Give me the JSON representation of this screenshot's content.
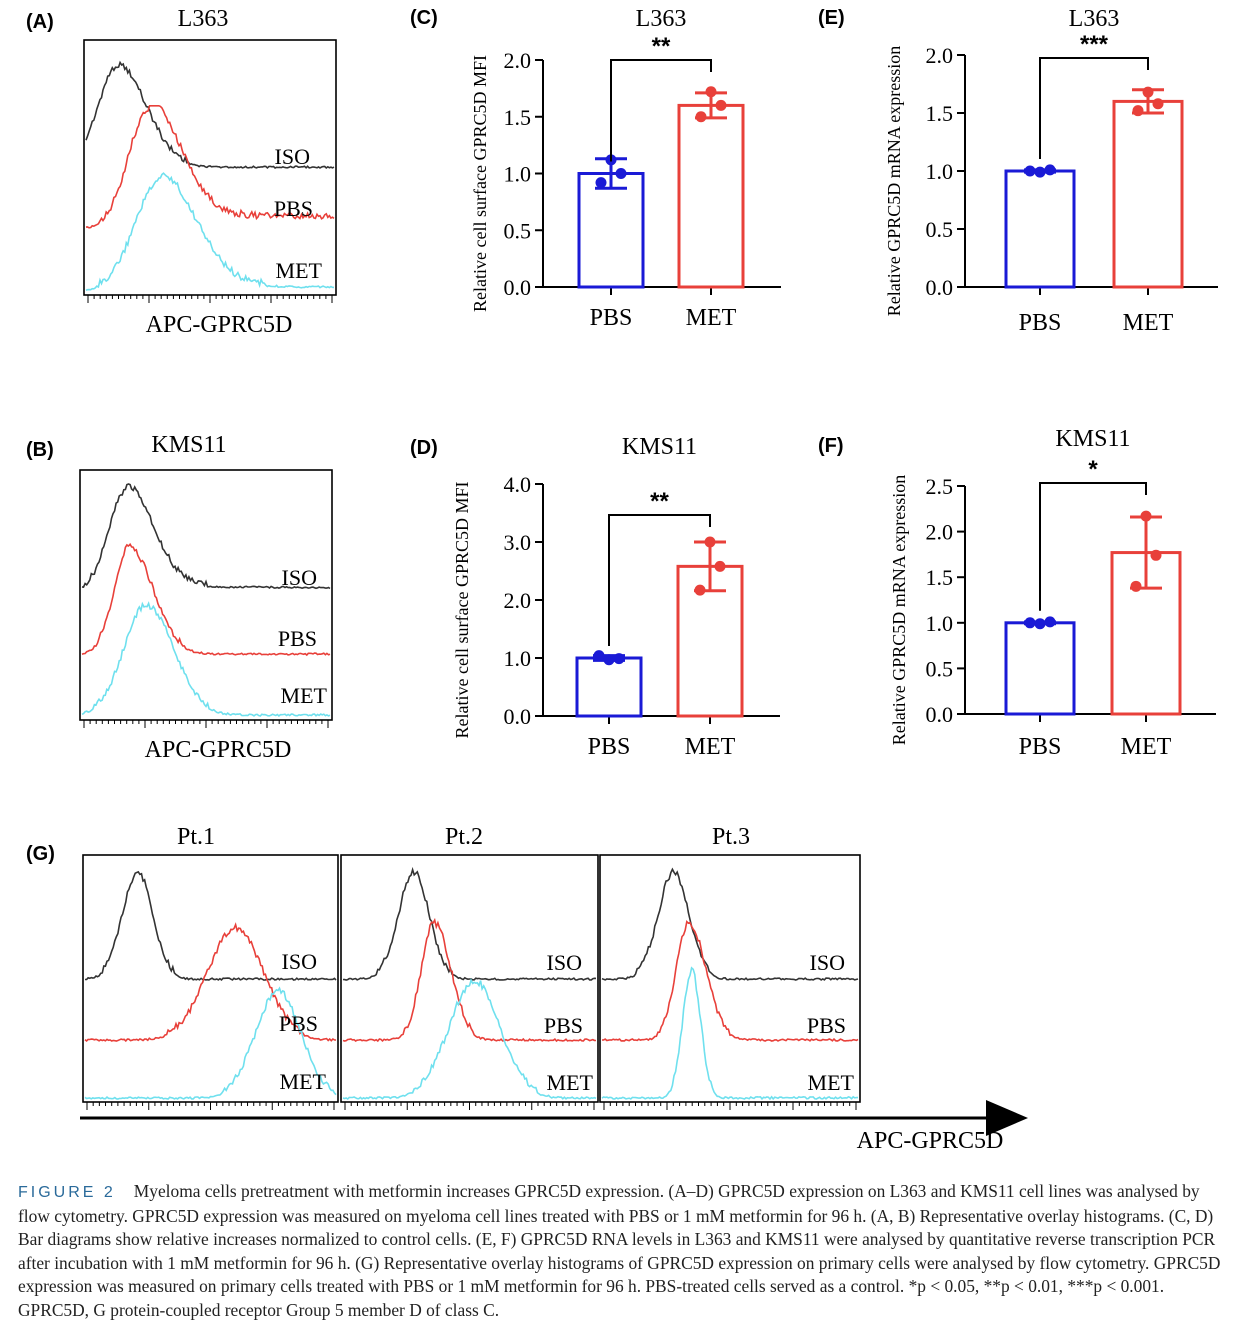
{
  "panels": {
    "A": {
      "letter": "(A)",
      "title": "L363",
      "xlabel": "APC-GPRC5D",
      "labels": [
        "ISO",
        "PBS",
        "MET"
      ]
    },
    "B": {
      "letter": "(B)",
      "title": "KMS11",
      "xlabel": "APC-GPRC5D",
      "labels": [
        "ISO",
        "PBS",
        "MET"
      ]
    },
    "G": {
      "letter": "(G)",
      "titles": [
        "Pt.1",
        "Pt.2",
        "Pt.3"
      ],
      "labels": [
        "ISO",
        "PBS",
        "MET"
      ],
      "xlabel": "APC-GPRC5D"
    }
  },
  "colors": {
    "ISO": "#333333",
    "PBS": "#e8403a",
    "MET": "#6fe0ee",
    "PBS_bar": "#1a1ad6",
    "MET_bar": "#e8403a"
  },
  "chart_data": [
    {
      "id": "C",
      "letter": "(C)",
      "type": "bar",
      "title": "L363",
      "ylabel": "Relative cell surface GPRC5D MFI",
      "categories": [
        "PBS",
        "MET"
      ],
      "values": [
        1.0,
        1.6
      ],
      "errors": [
        0.13,
        0.11
      ],
      "points": [
        [
          1.12,
          0.92,
          1.0
        ],
        [
          1.72,
          1.5,
          1.6
        ]
      ],
      "ylim": [
        0,
        2.0
      ],
      "ticks": [
        "0.0",
        "0.5",
        "1.0",
        "1.5",
        "2.0"
      ],
      "tick_values": [
        0,
        0.5,
        1.0,
        1.5,
        2.0
      ],
      "significance": "**"
    },
    {
      "id": "D",
      "letter": "(D)",
      "type": "bar",
      "title": "KMS11",
      "ylabel": "Relative cell surface GPRC5D MFI",
      "categories": [
        "PBS",
        "MET"
      ],
      "values": [
        1.0,
        2.58
      ],
      "errors": [
        0.04,
        0.42
      ],
      "points": [
        [
          0.97,
          1.04,
          0.99
        ],
        [
          3.0,
          2.17,
          2.58
        ]
      ],
      "ylim": [
        0,
        4.0
      ],
      "ticks": [
        "0.0",
        "1.0",
        "2.0",
        "3.0",
        "4.0"
      ],
      "tick_values": [
        0,
        1.0,
        2.0,
        3.0,
        4.0
      ],
      "significance": "**"
    },
    {
      "id": "E",
      "letter": "(E)",
      "type": "bar",
      "title": "L363",
      "ylabel": "Relative  GPRC5D mRNA expression",
      "categories": [
        "PBS",
        "MET"
      ],
      "values": [
        1.0,
        1.6
      ],
      "errors": [
        0.01,
        0.1
      ],
      "points": [
        [
          0.99,
          1.0,
          1.01
        ],
        [
          1.68,
          1.52,
          1.58
        ]
      ],
      "ylim": [
        0,
        2.0
      ],
      "ticks": [
        "0.0",
        "0.5",
        "1.0",
        "1.5",
        "2.0"
      ],
      "tick_values": [
        0,
        0.5,
        1.0,
        1.5,
        2.0
      ],
      "significance": "***"
    },
    {
      "id": "F",
      "letter": "(F)",
      "type": "bar",
      "title": "KMS11",
      "ylabel": "Relative  GPRC5D mRNA expression",
      "categories": [
        "PBS",
        "MET"
      ],
      "values": [
        1.0,
        1.77
      ],
      "errors": [
        0.01,
        0.39
      ],
      "points": [
        [
          0.99,
          1.0,
          1.01
        ],
        [
          2.17,
          1.4,
          1.74
        ]
      ],
      "ylim": [
        0,
        2.5
      ],
      "ticks": [
        "0.0",
        "0.5",
        "1.0",
        "1.5",
        "2.0",
        "2.5"
      ],
      "tick_values": [
        0,
        0.5,
        1.0,
        1.5,
        2.0,
        2.5
      ],
      "significance": "*"
    }
  ],
  "caption": {
    "label": "FIGURE 2",
    "text": "Myeloma cells pretreatment with metformin increases GPRC5D expression. (A–D) GPRC5D expression on L363 and KMS11 cell lines was analysed by flow cytometry. GPRC5D expression was measured on myeloma cell lines treated with PBS or 1 mM metformin for 96 h. (A, B) Representative overlay histograms. (C, D) Bar diagrams show relative increases normalized to control cells. (E, F) GPRC5D RNA levels in L363 and KMS11 were analysed by quantitative reverse transcription PCR after incubation with 1 mM metformin for 96 h. (G) Representative overlay histograms of GPRC5D expression on primary cells were analysed by flow cytometry. GPRC5D expression was measured on primary cells treated with PBS or 1 mM metformin for 96 h. PBS-treated cells served as a control. *p < 0.05, **p < 0.01, ***p < 0.001. GPRC5D, G protein-coupled receptor Group 5 member D of class C."
  }
}
